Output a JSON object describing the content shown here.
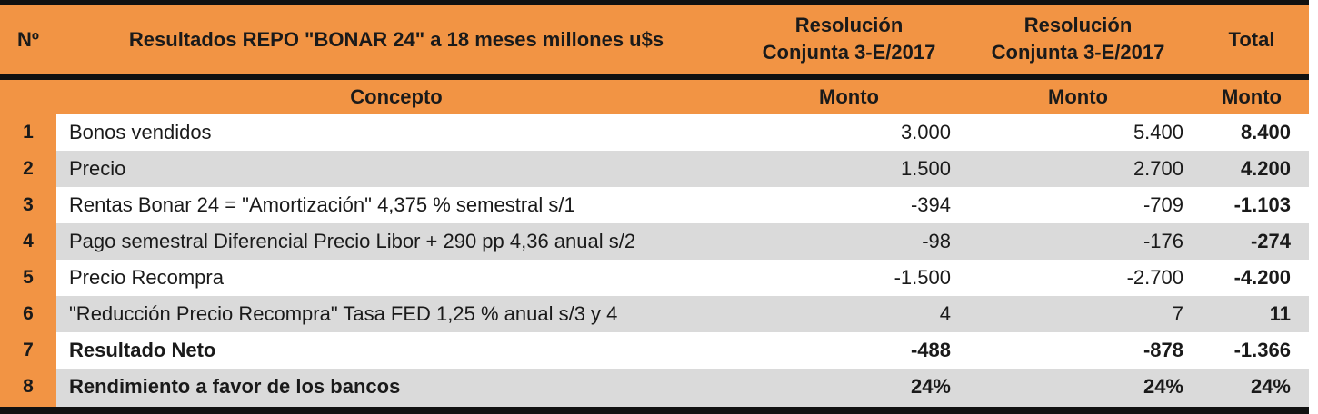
{
  "header": {
    "col_num": "Nº",
    "col_title": "Resultados REPO \"BONAR 24\" a 18 meses millones u$s",
    "col_res1_line1": "Resolución",
    "col_res1_line2": "Conjunta 3-E/2017",
    "col_res2_line1": "Resolución",
    "col_res2_line2": "Conjunta 3-E/2017",
    "col_total": "Total"
  },
  "subheader": {
    "concepto": "Concepto",
    "monto1": "Monto",
    "monto2": "Monto",
    "monto3": "Monto"
  },
  "rows": [
    {
      "n": "1",
      "concepto": "Bonos vendidos",
      "m1": "3.000",
      "m2": "5.400",
      "total": "8.400"
    },
    {
      "n": "2",
      "concepto": "Precio",
      "m1": "1.500",
      "m2": "2.700",
      "total": "4.200"
    },
    {
      "n": "3",
      "concepto": "Rentas Bonar 24 = \"Amortización\" 4,375 % semestral s/1",
      "m1": "-394",
      "m2": "-709",
      "total": "-1.103"
    },
    {
      "n": "4",
      "concepto": "Pago semestral Diferencial Precio Libor + 290 pp 4,36 anual s/2",
      "m1": "-98",
      "m2": "-176",
      "total": "-274"
    },
    {
      "n": "5",
      "concepto": "Precio Recompra",
      "m1": "-1.500",
      "m2": "-2.700",
      "total": "-4.200"
    },
    {
      "n": "6",
      "concepto": "\"Reducción Precio Recompra\" Tasa FED 1,25 % anual s/3 y 4",
      "m1": "4",
      "m2": "7",
      "total": "11"
    },
    {
      "n": "7",
      "concepto": "Resultado Neto",
      "m1": "-488",
      "m2": "-878",
      "total": "-1.366"
    },
    {
      "n": "8",
      "concepto": "Rendimiento a favor de los bancos",
      "m1": "24%",
      "m2": "24%",
      "total": "24%"
    }
  ],
  "colors": {
    "header_orange": "#f29444",
    "row_gray": "#dadada"
  }
}
